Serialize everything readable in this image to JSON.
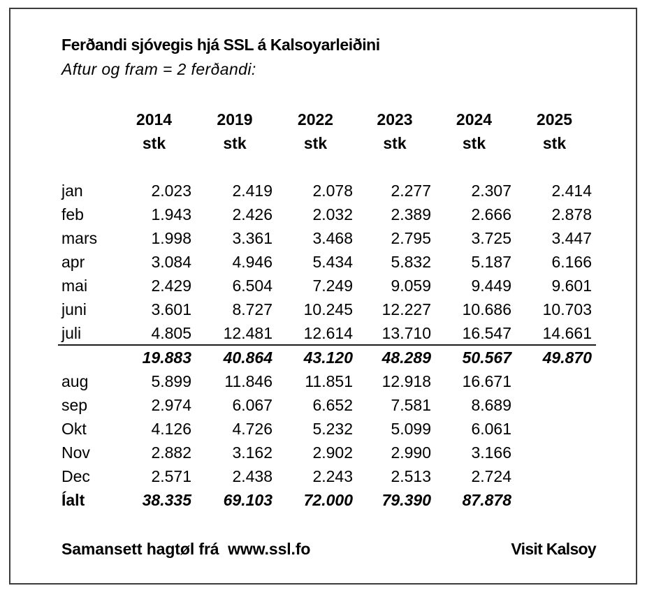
{
  "window": {
    "background": "#ffffff",
    "frame_border_color": "#3c3c3c",
    "text_color": "#000000"
  },
  "header": {
    "title": "Ferðandi sjóvegis hjá SSL á Kalsoyarleiðini",
    "subtitle": "Aftur og fram = 2 ferðandi:"
  },
  "table": {
    "unit_label": "stk",
    "years": [
      "2014",
      "2019",
      "2022",
      "2023",
      "2024",
      "2025"
    ],
    "rows": [
      {
        "label": "jan",
        "style": "normal",
        "values": [
          "2.023",
          "2.419",
          "2.078",
          "2.277",
          "2.307",
          "2.414"
        ]
      },
      {
        "label": "feb",
        "style": "normal",
        "values": [
          "1.943",
          "2.426",
          "2.032",
          "2.389",
          "2.666",
          "2.878"
        ]
      },
      {
        "label": "mars",
        "style": "normal",
        "values": [
          "1.998",
          "3.361",
          "3.468",
          "2.795",
          "3.725",
          "3.447"
        ]
      },
      {
        "label": "apr",
        "style": "normal",
        "values": [
          "3.084",
          "4.946",
          "5.434",
          "5.832",
          "5.187",
          "6.166"
        ]
      },
      {
        "label": "mai",
        "style": "normal",
        "values": [
          "2.429",
          "6.504",
          "7.249",
          "9.059",
          "9.449",
          "9.601"
        ]
      },
      {
        "label": "juni",
        "style": "normal",
        "values": [
          "3.601",
          "8.727",
          "10.245",
          "12.227",
          "10.686",
          "10.703"
        ]
      },
      {
        "label": "juli",
        "style": "normal",
        "values": [
          "4.805",
          "12.481",
          "12.614",
          "13.710",
          "16.547",
          "14.661"
        ]
      },
      {
        "label": "",
        "style": "subtotal",
        "values": [
          "19.883",
          "40.864",
          "43.120",
          "48.289",
          "50.567",
          "49.870"
        ]
      },
      {
        "label": "aug",
        "style": "normal",
        "values": [
          "5.899",
          "11.846",
          "11.851",
          "12.918",
          "16.671",
          ""
        ]
      },
      {
        "label": "sep",
        "style": "normal",
        "values": [
          "2.974",
          "6.067",
          "6.652",
          "7.581",
          "8.689",
          ""
        ]
      },
      {
        "label": "Okt",
        "style": "normal",
        "values": [
          "4.126",
          "4.726",
          "5.232",
          "5.099",
          "6.061",
          ""
        ]
      },
      {
        "label": "Nov",
        "style": "normal",
        "values": [
          "2.882",
          "3.162",
          "2.902",
          "2.990",
          "3.166",
          ""
        ]
      },
      {
        "label": "Dec",
        "style": "normal",
        "values": [
          "2.571",
          "2.438",
          "2.243",
          "2.513",
          "2.724",
          ""
        ]
      },
      {
        "label": "Íalt",
        "style": "total",
        "values": [
          "38.335",
          "69.103",
          "72.000",
          "79.390",
          "87.878",
          ""
        ]
      }
    ]
  },
  "footer": {
    "left": "Samansett hagtøl frá  www.ssl.fo",
    "right": "Visit Kalsoy"
  }
}
